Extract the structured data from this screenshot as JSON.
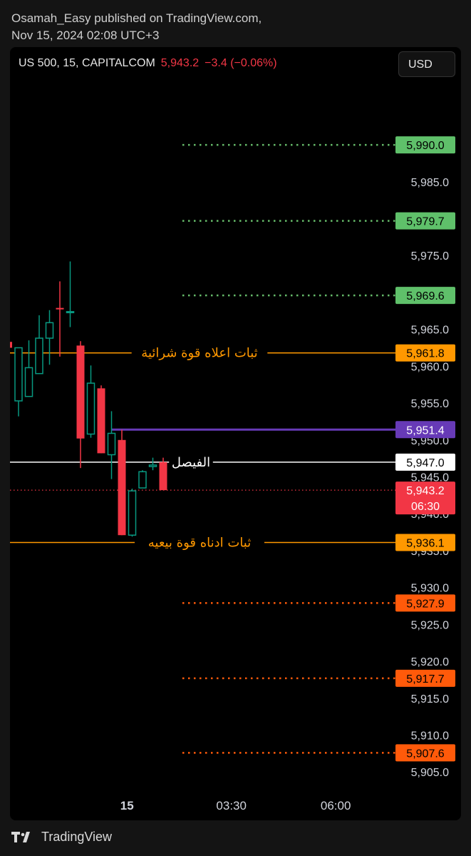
{
  "publisher": {
    "line1": "Osamah_Easy published on TradingView.com,",
    "line2": "Nov 15, 2024 02:08 UTC+3"
  },
  "header": {
    "symbol": "US 500, 15, CAPITALCOM",
    "price": "5,943.2",
    "change": "−3.4 (−0.06%)",
    "currency": "USD"
  },
  "footer": {
    "brand": "TradingView"
  },
  "chart_data": {
    "type": "candlestick",
    "ylim": [
      5902.7,
      5999.0
    ],
    "price_ticks": [
      "5,985.0",
      "5,975.0",
      "5,965.0",
      "5,960.0",
      "5,955.0",
      "5,950.0",
      "5,945.0",
      "5,940.0",
      "5,935.0",
      "5,930.0",
      "5,925.0",
      "5,920.0",
      "5,915.0",
      "5,910.0",
      "5,905.0"
    ],
    "price_tick_values": [
      5985,
      5975,
      5965,
      5960,
      5955,
      5950,
      5945,
      5940,
      5935,
      5930,
      5925,
      5920,
      5915,
      5910,
      5905
    ],
    "time_ticks": [
      {
        "label": "15",
        "bar": 11.5,
        "bold": true
      },
      {
        "label": "03:30",
        "bar": 21.6,
        "bold": false
      },
      {
        "label": "06:00",
        "bar": 31.7,
        "bold": false
      }
    ],
    "candles": [
      {
        "o": 5963.3,
        "h": 5964.8,
        "l": 5958.8,
        "c": 5962.5
      },
      {
        "o": 5955.3,
        "h": 5962.5,
        "l": 5953.2,
        "c": 5962.5
      },
      {
        "o": 5955.9,
        "h": 5963.5,
        "l": 5955.9,
        "c": 5959.8
      },
      {
        "o": 5959.0,
        "h": 5966.9,
        "l": 5959.0,
        "c": 5963.8
      },
      {
        "o": 5963.8,
        "h": 5967.6,
        "l": 5960.2,
        "c": 5965.9
      },
      {
        "o": 5967.9,
        "h": 5971.5,
        "l": 5961.3,
        "c": 5967.7
      },
      {
        "o": 5967.4,
        "h": 5974.2,
        "l": 5965.3,
        "c": 5967.4
      },
      {
        "o": 5962.8,
        "h": 5963.4,
        "l": 5946.2,
        "c": 5950.2
      },
      {
        "o": 5950.8,
        "h": 5960.1,
        "l": 5950.3,
        "c": 5957.7
      },
      {
        "o": 5957.0,
        "h": 5957.4,
        "l": 5948.2,
        "c": 5948.2
      },
      {
        "o": 5948.0,
        "h": 5953.9,
        "l": 5944.7,
        "c": 5950.9
      },
      {
        "o": 5950.0,
        "h": 5951.4,
        "l": 5937.1,
        "c": 5937.1
      },
      {
        "o": 5937.1,
        "h": 5943.4,
        "l": 5936.9,
        "c": 5943.1
      },
      {
        "o": 5943.5,
        "h": 5945.9,
        "l": 5943.5,
        "c": 5945.7
      },
      {
        "o": 5946.4,
        "h": 5947.6,
        "l": 5945.9,
        "c": 5946.6
      },
      {
        "o": 5947.0,
        "h": 5947.6,
        "l": 5943.2,
        "c": 5943.2
      }
    ],
    "levels": [
      {
        "value": 5990.0,
        "label": "5,990.0",
        "color": "#66bb6a",
        "style": "dotted",
        "badge_bg": "#5fc06a",
        "badge_fg": "#000000"
      },
      {
        "value": 5979.7,
        "label": "5,979.7",
        "color": "#66bb6a",
        "style": "dotted",
        "badge_bg": "#5fc06a",
        "badge_fg": "#000000"
      },
      {
        "value": 5969.6,
        "label": "5,969.6",
        "color": "#66bb6a",
        "style": "dotted",
        "badge_bg": "#5fc06a",
        "badge_fg": "#000000"
      },
      {
        "value": 5961.8,
        "label": "5,961.8",
        "color": "#ff9800",
        "style": "solid",
        "badge_bg": "#ff9800",
        "badge_fg": "#000000",
        "text": "ثبات اعلاه قوة شرائية"
      },
      {
        "value": 5951.4,
        "label": "5,951.4",
        "color": "#673ab7",
        "style": "solid-thick",
        "badge_bg": "#673ab7",
        "badge_fg": "#ffffff"
      },
      {
        "value": 5947.0,
        "label": "5,947.0",
        "color": "#ffffff",
        "style": "solid",
        "badge_bg": "#ffffff",
        "badge_fg": "#000000",
        "text": "الفيصل"
      },
      {
        "value": 5936.1,
        "label": "5,936.1",
        "color": "#ff9800",
        "style": "solid",
        "badge_bg": "#ff9800",
        "badge_fg": "#000000",
        "text": "ثبات ادناه قوة بيعيه"
      },
      {
        "value": 5927.9,
        "label": "5,927.9",
        "color": "#ff5a0a",
        "style": "dotted",
        "badge_bg": "#ff5a0a",
        "badge_fg": "#000000"
      },
      {
        "value": 5917.7,
        "label": "5,917.7",
        "color": "#ff5a0a",
        "style": "dotted",
        "badge_bg": "#ff5a0a",
        "badge_fg": "#000000"
      },
      {
        "value": 5907.6,
        "label": "5,907.6",
        "color": "#ff5a0a",
        "style": "dotted",
        "badge_bg": "#ff5a0a",
        "badge_fg": "#000000"
      }
    ],
    "last_price": {
      "value": 5943.2,
      "label": "5,943.2",
      "countdown": "06:30",
      "color": "#f23645"
    },
    "colors": {
      "up": "#089981",
      "down": "#f23645",
      "wick_up": "#089981",
      "wick_down": "#f23645"
    }
  }
}
